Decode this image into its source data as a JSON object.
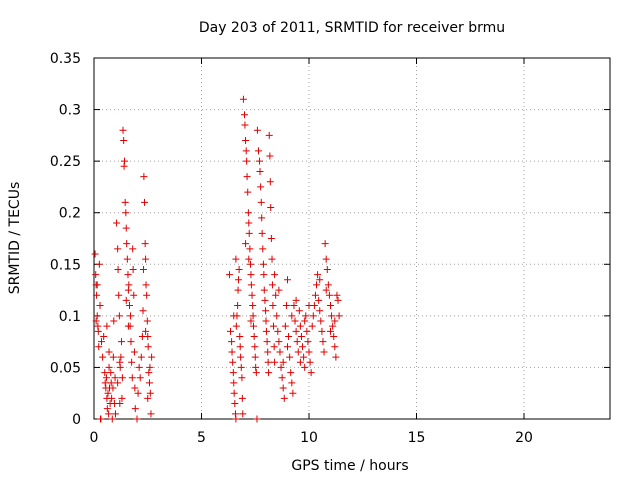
{
  "chart_data": {
    "type": "scatter",
    "title": "Day 203 of 2011, SRMTID for receiver brmu",
    "xlabel": "GPS time / hours",
    "ylabel": "SRMTID / TECUs",
    "xlim": [
      0,
      24
    ],
    "ylim": [
      0,
      0.35
    ],
    "xticks": [
      0,
      5,
      10,
      15,
      20
    ],
    "xtick_labels": [
      "0",
      "5",
      "10",
      "15",
      "20"
    ],
    "yticks": [
      0,
      0.05,
      0.1,
      0.15,
      0.2,
      0.25,
      0.3,
      0.35
    ],
    "ytick_labels": [
      "0",
      "0.05",
      "0.1",
      "0.15",
      "0.2",
      "0.25",
      "0.3",
      "0.35"
    ],
    "grid": true,
    "marker": "+",
    "point_color": "#e00000",
    "series": [
      {
        "name": "SRMTID",
        "points": [
          [
            0.05,
            0.16
          ],
          [
            0.08,
            0.14
          ],
          [
            0.1,
            0.13
          ],
          [
            0.12,
            0.12
          ],
          [
            0.15,
            0.1
          ],
          [
            0.18,
            0.09
          ],
          [
            0.2,
            0.085
          ],
          [
            0.22,
            0.07
          ],
          [
            0.25,
            0.15
          ],
          [
            0.28,
            0.11
          ],
          [
            0.1,
            0.095
          ],
          [
            0.15,
            0.13
          ],
          [
            0.3,
            0.0
          ],
          [
            0.32,
            0.0
          ],
          [
            0.35,
            0.075
          ],
          [
            0.4,
            0.06
          ],
          [
            0.45,
            0.08
          ],
          [
            0.5,
            0.045
          ],
          [
            0.52,
            0.035
          ],
          [
            0.55,
            0.03
          ],
          [
            0.58,
            0.04
          ],
          [
            0.6,
            0.02
          ],
          [
            0.62,
            0.01
          ],
          [
            0.65,
            0.025
          ],
          [
            0.68,
            0.005
          ],
          [
            0.7,
            0.05
          ],
          [
            0.72,
            0.03
          ],
          [
            0.75,
            0.015
          ],
          [
            0.78,
            0.045
          ],
          [
            0.8,
            0.035
          ],
          [
            0.82,
            0.02
          ],
          [
            0.85,
            0.0
          ],
          [
            0.88,
            0.03
          ],
          [
            0.9,
            0.06
          ],
          [
            0.92,
            0.095
          ],
          [
            0.95,
            0.015
          ],
          [
            0.98,
            0.04
          ],
          [
            1.0,
            0.005
          ],
          [
            0.6,
            0.09
          ],
          [
            0.7,
            0.065
          ],
          [
            1.05,
            0.19
          ],
          [
            1.1,
            0.165
          ],
          [
            1.12,
            0.145
          ],
          [
            1.15,
            0.12
          ],
          [
            1.18,
            0.1
          ],
          [
            1.2,
            0.055
          ],
          [
            1.22,
            0.05
          ],
          [
            1.25,
            0.06
          ],
          [
            1.28,
            0.075
          ],
          [
            1.3,
            0.02
          ],
          [
            1.32,
            0.04
          ],
          [
            1.1,
            0.035
          ],
          [
            1.2,
            0.015
          ],
          [
            1.35,
            0.28
          ],
          [
            1.38,
            0.27
          ],
          [
            1.4,
            0.245
          ],
          [
            1.42,
            0.25
          ],
          [
            1.45,
            0.21
          ],
          [
            1.48,
            0.2
          ],
          [
            1.5,
            0.185
          ],
          [
            1.52,
            0.17
          ],
          [
            1.55,
            0.155
          ],
          [
            1.58,
            0.14
          ],
          [
            1.6,
            0.125
          ],
          [
            1.62,
            0.13
          ],
          [
            1.65,
            0.11
          ],
          [
            1.68,
            0.09
          ],
          [
            1.7,
            0.1
          ],
          [
            1.72,
            0.075
          ],
          [
            1.75,
            0.055
          ],
          [
            1.78,
            0.04
          ],
          [
            1.8,
            0.165
          ],
          [
            1.82,
            0.145
          ],
          [
            1.85,
            0.12
          ],
          [
            1.88,
            0.065
          ],
          [
            1.9,
            0.03
          ],
          [
            1.92,
            0.01
          ],
          [
            1.5,
            0.115
          ],
          [
            1.6,
            0.09
          ],
          [
            2.0,
            0.0
          ],
          [
            2.05,
            0.025
          ],
          [
            2.1,
            0.05
          ],
          [
            2.15,
            0.04
          ],
          [
            2.2,
            0.06
          ],
          [
            2.25,
            0.08
          ],
          [
            2.28,
            0.105
          ],
          [
            2.3,
            0.145
          ],
          [
            2.32,
            0.235
          ],
          [
            2.35,
            0.21
          ],
          [
            2.38,
            0.17
          ],
          [
            2.4,
            0.155
          ],
          [
            2.42,
            0.13
          ],
          [
            2.45,
            0.12
          ],
          [
            2.48,
            0.095
          ],
          [
            2.5,
            0.08
          ],
          [
            2.52,
            0.07
          ],
          [
            2.55,
            0.045
          ],
          [
            2.58,
            0.035
          ],
          [
            2.6,
            0.05
          ],
          [
            2.62,
            0.025
          ],
          [
            2.65,
            0.005
          ],
          [
            2.68,
            0.06
          ],
          [
            2.4,
            0.085
          ],
          [
            2.5,
            0.02
          ],
          [
            6.3,
            0.14
          ],
          [
            6.35,
            0.085
          ],
          [
            6.4,
            0.075
          ],
          [
            6.42,
            0.065
          ],
          [
            6.45,
            0.055
          ],
          [
            6.48,
            0.045
          ],
          [
            6.5,
            0.035
          ],
          [
            6.52,
            0.025
          ],
          [
            6.55,
            0.015
          ],
          [
            6.58,
            0.005
          ],
          [
            6.6,
            0.0
          ],
          [
            6.62,
            0.09
          ],
          [
            6.65,
            0.1
          ],
          [
            6.68,
            0.11
          ],
          [
            6.7,
            0.125
          ],
          [
            6.72,
            0.135
          ],
          [
            6.75,
            0.145
          ],
          [
            6.78,
            0.08
          ],
          [
            6.8,
            0.07
          ],
          [
            6.82,
            0.06
          ],
          [
            6.85,
            0.05
          ],
          [
            6.88,
            0.04
          ],
          [
            6.9,
            0.02
          ],
          [
            6.92,
            0.005
          ],
          [
            6.5,
            0.1
          ],
          [
            6.6,
            0.155
          ],
          [
            6.95,
            0.31
          ],
          [
            7.0,
            0.295
          ],
          [
            7.02,
            0.285
          ],
          [
            7.05,
            0.27
          ],
          [
            7.08,
            0.26
          ],
          [
            7.1,
            0.25
          ],
          [
            7.12,
            0.235
          ],
          [
            7.15,
            0.22
          ],
          [
            7.18,
            0.2
          ],
          [
            7.2,
            0.19
          ],
          [
            7.22,
            0.18
          ],
          [
            7.25,
            0.165
          ],
          [
            7.28,
            0.15
          ],
          [
            7.3,
            0.14
          ],
          [
            7.32,
            0.13
          ],
          [
            7.35,
            0.12
          ],
          [
            7.38,
            0.11
          ],
          [
            7.4,
            0.1
          ],
          [
            7.42,
            0.09
          ],
          [
            7.45,
            0.08
          ],
          [
            7.48,
            0.07
          ],
          [
            7.5,
            0.06
          ],
          [
            7.52,
            0.05
          ],
          [
            7.55,
            0.045
          ],
          [
            7.58,
            0.0
          ],
          [
            7.05,
            0.17
          ],
          [
            7.2,
            0.155
          ],
          [
            7.3,
            0.095
          ],
          [
            7.6,
            0.28
          ],
          [
            7.65,
            0.26
          ],
          [
            7.7,
            0.25
          ],
          [
            7.72,
            0.24
          ],
          [
            7.75,
            0.225
          ],
          [
            7.78,
            0.21
          ],
          [
            7.8,
            0.195
          ],
          [
            7.82,
            0.18
          ],
          [
            7.85,
            0.165
          ],
          [
            7.88,
            0.15
          ],
          [
            7.9,
            0.14
          ],
          [
            7.92,
            0.125
          ],
          [
            7.95,
            0.115
          ],
          [
            7.98,
            0.105
          ],
          [
            8.0,
            0.095
          ],
          [
            8.02,
            0.085
          ],
          [
            8.05,
            0.075
          ],
          [
            8.08,
            0.065
          ],
          [
            8.1,
            0.055
          ],
          [
            8.12,
            0.045
          ],
          [
            8.15,
            0.275
          ],
          [
            8.18,
            0.255
          ],
          [
            8.2,
            0.23
          ],
          [
            8.22,
            0.205
          ],
          [
            8.25,
            0.175
          ],
          [
            8.28,
            0.155
          ],
          [
            8.3,
            0.13
          ],
          [
            8.32,
            0.11
          ],
          [
            8.35,
            0.09
          ],
          [
            8.38,
            0.07
          ],
          [
            8.4,
            0.055
          ],
          [
            8.4,
            0.14
          ],
          [
            8.45,
            0.12
          ],
          [
            8.5,
            0.1
          ],
          [
            8.55,
            0.085
          ],
          [
            8.6,
            0.075
          ],
          [
            8.65,
            0.065
          ],
          [
            8.7,
            0.05
          ],
          [
            8.75,
            0.04
          ],
          [
            8.8,
            0.03
          ],
          [
            8.85,
            0.02
          ],
          [
            8.9,
            0.09
          ],
          [
            8.95,
            0.11
          ],
          [
            9.0,
            0.135
          ],
          [
            9.05,
            0.08
          ],
          [
            9.1,
            0.06
          ],
          [
            9.15,
            0.045
          ],
          [
            9.2,
            0.035
          ],
          [
            9.25,
            0.025
          ],
          [
            8.6,
            0.125
          ],
          [
            8.8,
            0.055
          ],
          [
            9.0,
            0.07
          ],
          [
            9.2,
            0.1
          ],
          [
            9.3,
            0.11
          ],
          [
            9.35,
            0.095
          ],
          [
            9.4,
            0.085
          ],
          [
            9.45,
            0.075
          ],
          [
            9.5,
            0.065
          ],
          [
            9.55,
            0.105
          ],
          [
            9.6,
            0.09
          ],
          [
            9.65,
            0.08
          ],
          [
            9.7,
            0.07
          ],
          [
            9.75,
            0.06
          ],
          [
            9.8,
            0.05
          ],
          [
            9.85,
            0.1
          ],
          [
            9.9,
            0.085
          ],
          [
            9.95,
            0.075
          ],
          [
            10.0,
            0.065
          ],
          [
            10.05,
            0.055
          ],
          [
            10.1,
            0.045
          ],
          [
            9.4,
            0.115
          ],
          [
            9.6,
            0.055
          ],
          [
            9.8,
            0.095
          ],
          [
            10.0,
            0.11
          ],
          [
            10.15,
            0.09
          ],
          [
            10.2,
            0.1
          ],
          [
            10.25,
            0.11
          ],
          [
            10.3,
            0.12
          ],
          [
            10.35,
            0.13
          ],
          [
            10.4,
            0.14
          ],
          [
            10.45,
            0.115
          ],
          [
            10.5,
            0.105
          ],
          [
            10.55,
            0.095
          ],
          [
            10.6,
            0.085
          ],
          [
            10.65,
            0.075
          ],
          [
            10.7,
            0.065
          ],
          [
            10.75,
            0.17
          ],
          [
            10.8,
            0.155
          ],
          [
            10.85,
            0.145
          ],
          [
            10.9,
            0.13
          ],
          [
            10.95,
            0.12
          ],
          [
            11.0,
            0.11
          ],
          [
            11.05,
            0.1
          ],
          [
            11.1,
            0.09
          ],
          [
            11.15,
            0.08
          ],
          [
            11.2,
            0.07
          ],
          [
            11.25,
            0.06
          ],
          [
            11.3,
            0.12
          ],
          [
            11.35,
            0.115
          ],
          [
            11.4,
            0.1
          ],
          [
            10.5,
            0.135
          ],
          [
            10.8,
            0.125
          ],
          [
            11.0,
            0.085
          ],
          [
            11.2,
            0.095
          ]
        ]
      }
    ]
  }
}
